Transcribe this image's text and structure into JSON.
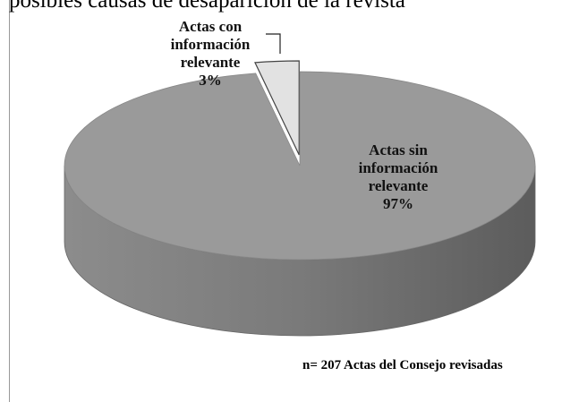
{
  "chart_data": {
    "type": "pie",
    "title": "posibles causas de desaparición de la revista",
    "categories": [
      "Actas con información relevante",
      "Actas sin información relevante"
    ],
    "values": [
      3,
      97
    ],
    "value_labels": [
      "3%",
      "97%"
    ],
    "colors": [
      "#e2e2e2",
      "#9a9a9a"
    ],
    "annotation": "n= 207 Actas del Consejo revisadas"
  }
}
